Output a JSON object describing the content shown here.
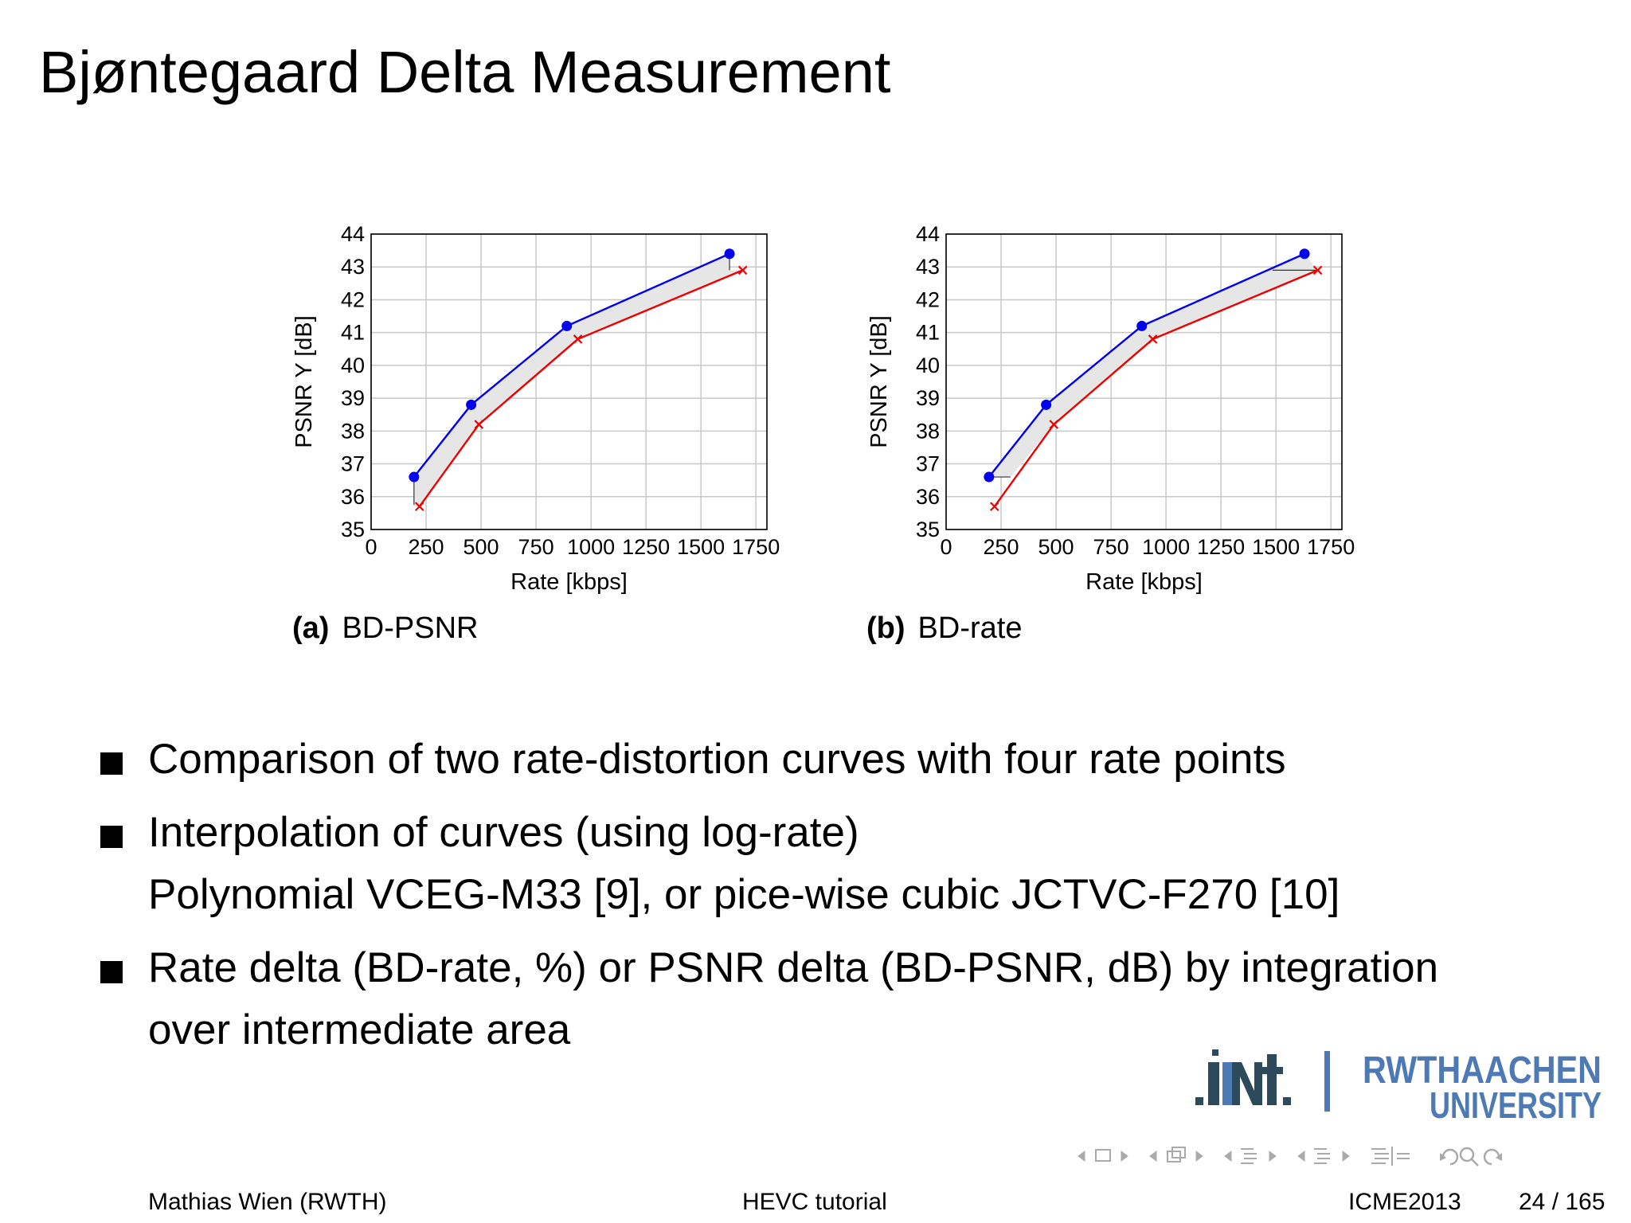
{
  "slide": {
    "title": "Bjøntegaard Delta Measurement",
    "bullets": [
      {
        "lines": [
          "Comparison of two rate-distortion curves with four rate points"
        ]
      },
      {
        "lines": [
          "Interpolation of curves (using log-rate)",
          "Polynomial VCEG-M33 [9], or pice-wise cubic JCTVC-F270 [10]"
        ]
      },
      {
        "lines": [
          "Rate delta (BD-rate, %) or PSNR delta (BD-PSNR, dB) by integration",
          "over intermediate area"
        ]
      }
    ],
    "captions": [
      {
        "letter": "(a)",
        "text": "BD-PSNR"
      },
      {
        "letter": "(b)",
        "text": "BD-rate"
      }
    ],
    "footer": {
      "author": "Mathias Wien  (RWTH)",
      "center": "HEVC tutorial",
      "conference": "ICME2013",
      "page": "24 / 165"
    },
    "logos": {
      "ient": "IENT",
      "rwth_line1": "RWTHAACHEN",
      "rwth_line2": "UNIVERSITY"
    },
    "colors": {
      "blue_series": "#0000ee",
      "red_series": "#ee0000",
      "fill_area": "#e6e6e6",
      "logo_dark": "#2c4a5a",
      "logo_blue": "#4d79b5"
    }
  },
  "chart_data": [
    {
      "type": "line",
      "panel": "a",
      "xlabel": "Rate [kbps]",
      "ylabel": "PSNR Y [dB]",
      "xlim": [
        0,
        1800
      ],
      "ylim": [
        35,
        44
      ],
      "xticks": [
        0,
        250,
        500,
        750,
        1000,
        1250,
        1500,
        1750
      ],
      "yticks": [
        35,
        36,
        37,
        38,
        39,
        40,
        41,
        42,
        43,
        44
      ],
      "grid": true,
      "delta_mode": "psnr",
      "series": [
        {
          "color": "#0000ee",
          "marker": "dot",
          "x": [
            195,
            455,
            890,
            1630
          ],
          "y": [
            36.6,
            38.8,
            41.2,
            43.4
          ]
        },
        {
          "color": "#ee0000",
          "marker": "cross",
          "x": [
            220,
            490,
            940,
            1690
          ],
          "y": [
            35.7,
            38.2,
            40.8,
            42.9
          ]
        }
      ]
    },
    {
      "type": "line",
      "panel": "b",
      "xlabel": "Rate [kbps]",
      "ylabel": "PSNR Y [dB]",
      "xlim": [
        0,
        1800
      ],
      "ylim": [
        35,
        44
      ],
      "xticks": [
        0,
        250,
        500,
        750,
        1000,
        1250,
        1500,
        1750
      ],
      "yticks": [
        35,
        36,
        37,
        38,
        39,
        40,
        41,
        42,
        43,
        44
      ],
      "grid": true,
      "delta_mode": "rate",
      "series": [
        {
          "color": "#0000ee",
          "marker": "dot",
          "x": [
            195,
            455,
            890,
            1630
          ],
          "y": [
            36.6,
            38.8,
            41.2,
            43.4
          ]
        },
        {
          "color": "#ee0000",
          "marker": "cross",
          "x": [
            220,
            490,
            940,
            1690
          ],
          "y": [
            35.7,
            38.2,
            40.8,
            42.9
          ]
        }
      ]
    }
  ]
}
